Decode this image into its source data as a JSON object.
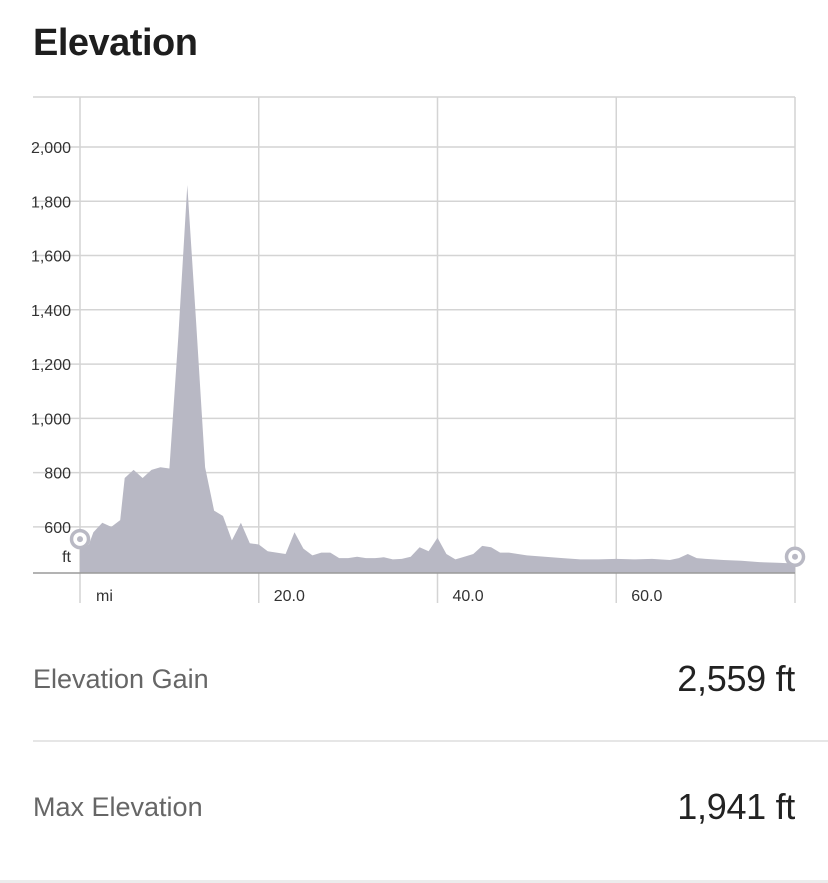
{
  "section": {
    "title": "Elevation"
  },
  "colors": {
    "area_fill": "#b8b8c4",
    "grid": "#d4d4d4",
    "marker": "#b9b9c4"
  },
  "chart_data": {
    "type": "area",
    "title": "",
    "xlabel": "mi",
    "ylabel": "ft",
    "xlim": [
      0,
      80
    ],
    "ylim": [
      430,
      2000
    ],
    "x_ticks": [
      20.0,
      40.0,
      60.0
    ],
    "x_tick_labels": [
      "20.0",
      "40.0",
      "60.0"
    ],
    "y_ticks": [
      600,
      800,
      1000,
      1200,
      1400,
      1600,
      1800,
      2000
    ],
    "y_tick_labels": [
      "600",
      "800",
      "1,000",
      "1,200",
      "1,400",
      "1,600",
      "1,800",
      "2,000"
    ],
    "grid": true,
    "series": [
      {
        "x": [
          0,
          1,
          1.5,
          2.5,
          3.5,
          4.5,
          5,
          6,
          7,
          8,
          9,
          10,
          11,
          12,
          13,
          14,
          15,
          16,
          17,
          18,
          19,
          20,
          21,
          22,
          23,
          24,
          25,
          26,
          27,
          28,
          29,
          30,
          31,
          32,
          33,
          34,
          35,
          36,
          37,
          38,
          39,
          40,
          41,
          42,
          43,
          44,
          45,
          46,
          47,
          48,
          49,
          50,
          52,
          54,
          56,
          58,
          60,
          62,
          64,
          66,
          67,
          68,
          69,
          70,
          72,
          74,
          76,
          78,
          80
        ],
        "y": [
          520,
          535,
          580,
          615,
          600,
          625,
          780,
          810,
          780,
          810,
          820,
          815,
          1300,
          1860,
          1350,
          820,
          660,
          640,
          550,
          615,
          540,
          535,
          510,
          505,
          500,
          580,
          520,
          495,
          505,
          505,
          485,
          485,
          490,
          485,
          485,
          488,
          480,
          482,
          490,
          525,
          510,
          560,
          500,
          480,
          490,
          500,
          530,
          525,
          505,
          505,
          500,
          495,
          490,
          485,
          480,
          480,
          482,
          480,
          482,
          478,
          485,
          500,
          485,
          482,
          478,
          475,
          470,
          468,
          465
        ]
      }
    ],
    "endpoints": [
      {
        "x": 0,
        "y": 555
      },
      {
        "x": 80,
        "y": 490
      }
    ]
  },
  "stats": {
    "elevation_gain_label": "Elevation Gain",
    "elevation_gain_value": "2,559 ft",
    "max_elevation_label": "Max Elevation",
    "max_elevation_value": "1,941 ft"
  }
}
